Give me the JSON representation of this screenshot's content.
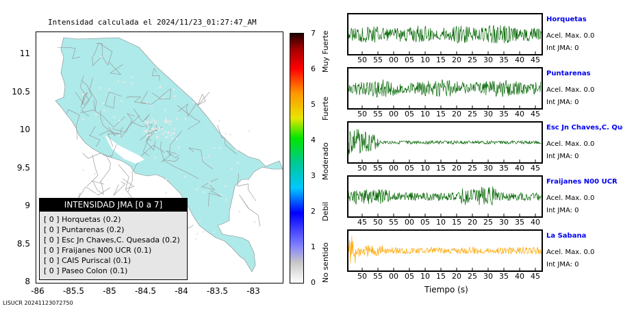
{
  "map": {
    "title": "Intensidad calculada el 2024/11/23_01:27:47_AM",
    "y_ticks": [
      "11",
      "10.5",
      "10",
      "9.5",
      "9",
      "8.5",
      "8"
    ],
    "x_ticks": [
      "-86",
      "-85.5",
      "-85",
      "-84.5",
      "-84",
      "-83.5",
      "-83"
    ],
    "land_color": "#aeeaea",
    "road_color": "#9a9a9a"
  },
  "colorbar": {
    "ticks": [
      "7",
      "6",
      "5",
      "4",
      "3",
      "2",
      "1",
      "0"
    ],
    "words": [
      "Muy Fuerte",
      "Fuerte",
      "Moderado",
      "Debil",
      "No sentido"
    ]
  },
  "legend": {
    "title": "INTENSIDAD JMA [0 a 7]",
    "rows": [
      "[ 0 ]  Horquetas (0.2)",
      "[ 0 ]  Puntarenas (0.2)",
      "[ 0 ]  Esc Jn Chaves,C. Quesada (0.2)",
      "[ 0 ]  Fraijanes N00 UCR (0.1)",
      "[ 0 ]  CAIS Puriscal (0.1)",
      "[ 0 ]  Paseo Colon (0.1)"
    ]
  },
  "stations": [
    {
      "name": "Horquetas",
      "acel": "Acel. Max. 0.0",
      "int": "Int JMA: 0",
      "color": "#006400",
      "ticks": [
        "50",
        "55",
        "00",
        "05",
        "10",
        "15",
        "20",
        "25",
        "30",
        "35",
        "40",
        "45"
      ]
    },
    {
      "name": "Puntarenas",
      "acel": "Acel. Max. 0.0",
      "int": "Int JMA: 0",
      "color": "#006400",
      "ticks": [
        "50",
        "55",
        "00",
        "05",
        "10",
        "15",
        "20",
        "25",
        "30",
        "35",
        "40",
        "45"
      ]
    },
    {
      "name": "Esc Jn Chaves,C. Ques",
      "acel": "Acel. Max. 0.0",
      "int": "Int JMA: 0",
      "color": "#006400",
      "ticks": [
        "50",
        "55",
        "00",
        "05",
        "10",
        "15",
        "20",
        "25",
        "30",
        "35",
        "40",
        "45"
      ]
    },
    {
      "name": "Fraijanes N00 UCR",
      "acel": "Acel. Max. 0.0",
      "int": "Int JMA: 0",
      "color": "#006400",
      "ticks": [
        "45",
        "50",
        "55",
        "00",
        "05",
        "10",
        "15",
        "20",
        "25",
        "30",
        "35",
        "40"
      ]
    },
    {
      "name": "La Sabana",
      "acel": "Acel. Max. 0.0",
      "int": "Int JMA: 0",
      "color": "#ffa500",
      "ticks": [
        "50",
        "55",
        "00",
        "05",
        "10",
        "15",
        "20",
        "25",
        "30",
        "35",
        "40",
        "45"
      ]
    }
  ],
  "xlabel": "Tiempo (s)",
  "footer": "LISUCR 20241123072750",
  "chart_data": {
    "type": "line",
    "title": "Intensidad calculada el 2024/11/23_01:27:47_AM",
    "xlabel": "Tiempo (s)",
    "ylabel": "",
    "series": [
      {
        "name": "Horquetas",
        "values": []
      },
      {
        "name": "Puntarenas",
        "values": []
      },
      {
        "name": "Esc Jn Chaves,C. Ques",
        "values": []
      },
      {
        "name": "Fraijanes N00 UCR",
        "values": []
      },
      {
        "name": "La Sabana",
        "values": []
      }
    ],
    "colorbar_range": [
      0,
      7
    ],
    "map_lon_range": [
      -86,
      -83
    ],
    "map_lat_range": [
      8,
      11
    ],
    "grid": false,
    "legend": "bottom-left"
  }
}
